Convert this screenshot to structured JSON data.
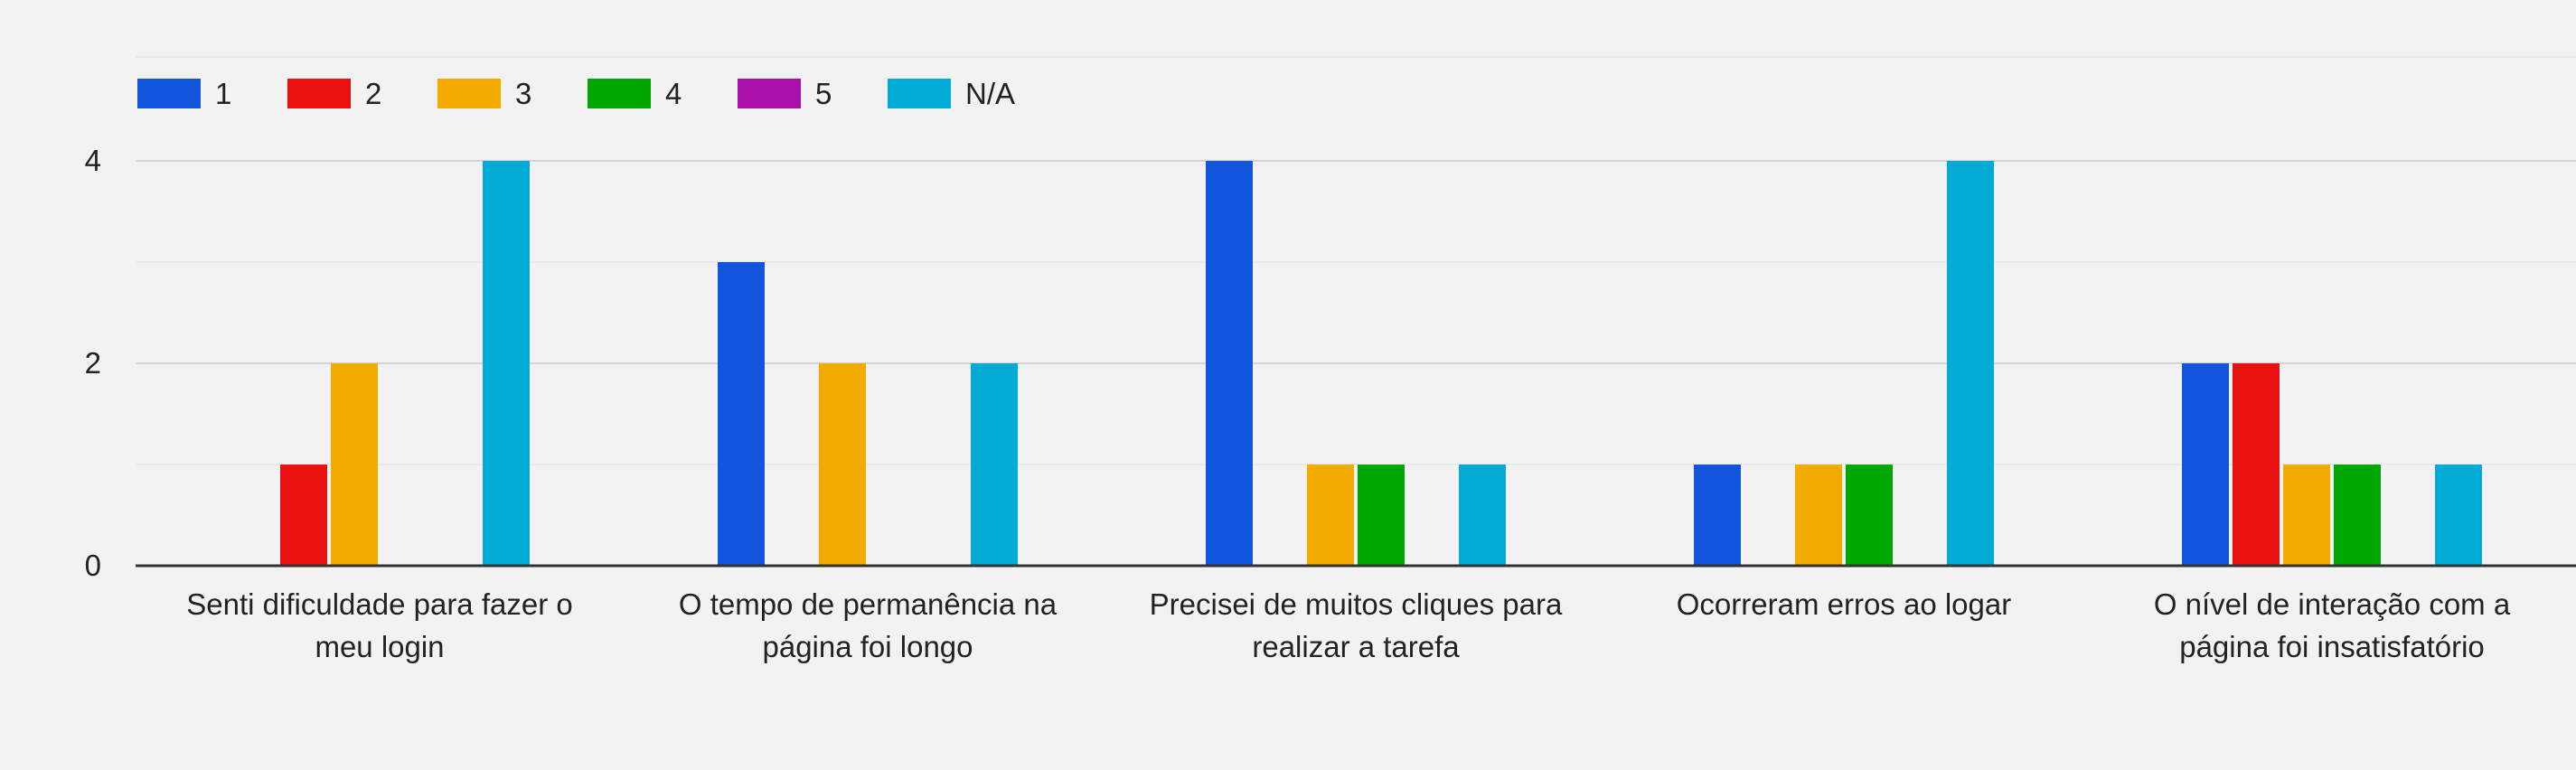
{
  "chart_data": {
    "type": "bar",
    "categories": [
      [
        "Senti dificuldade para fazer o",
        "meu login"
      ],
      [
        "O tempo de permanência na",
        "página foi longo"
      ],
      [
        "Precisei de muitos cliques para",
        "realizar a tarefa"
      ],
      [
        "Ocorreram erros ao logar"
      ],
      [
        "O nível de interação com a",
        "página foi insatisfatório"
      ]
    ],
    "series": [
      {
        "name": "1",
        "color": "#1155dd",
        "values": [
          0,
          3,
          4,
          1,
          2
        ]
      },
      {
        "name": "2",
        "color": "#e8110f",
        "values": [
          1,
          0,
          0,
          0,
          2
        ]
      },
      {
        "name": "3",
        "color": "#f4ab00",
        "values": [
          2,
          2,
          1,
          1,
          1
        ]
      },
      {
        "name": "4",
        "color": "#00a600",
        "values": [
          0,
          0,
          1,
          1,
          1
        ]
      },
      {
        "name": "5",
        "color": "#aa11aa",
        "values": [
          0,
          0,
          0,
          0,
          0
        ]
      },
      {
        "name": "N/A",
        "color": "#00acd5",
        "values": [
          4,
          2,
          1,
          4,
          1
        ]
      }
    ],
    "yticks": [
      0,
      2,
      4
    ],
    "ylim": [
      0,
      4.8
    ],
    "grid": true,
    "legend_position": "top-left",
    "title": "",
    "xlabel": "",
    "ylabel": ""
  }
}
